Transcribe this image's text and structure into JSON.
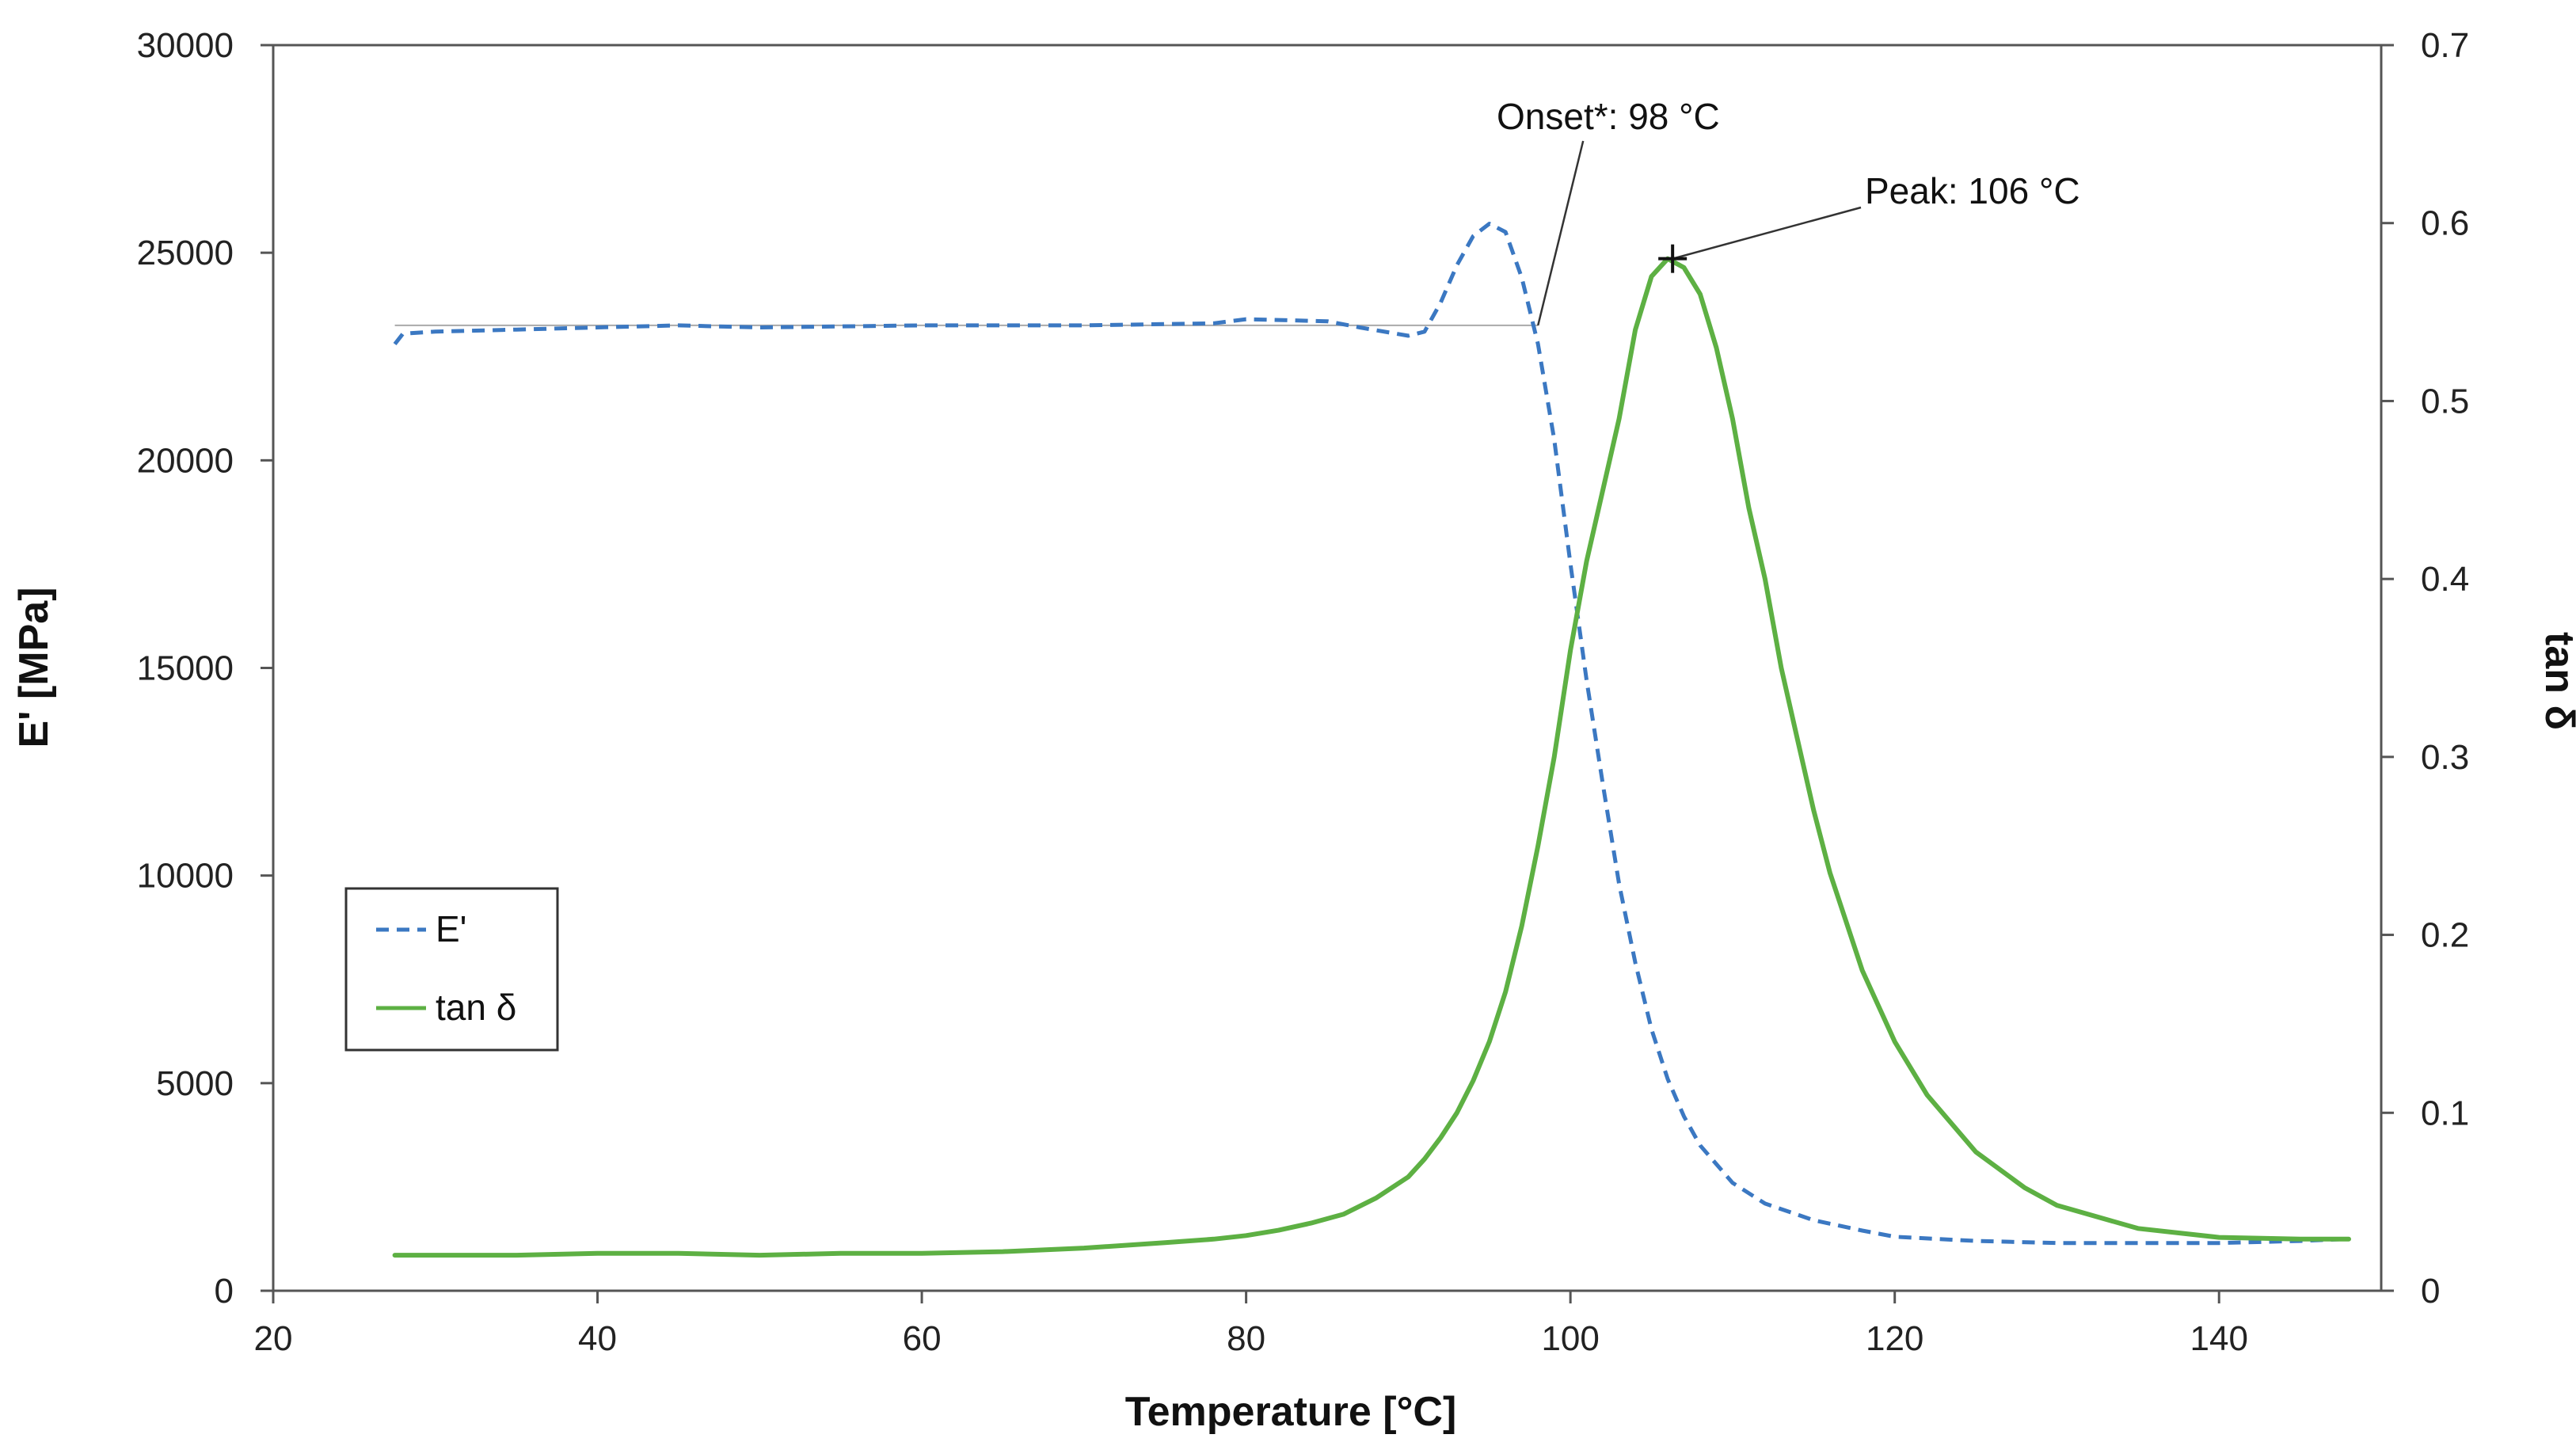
{
  "chart_data": {
    "type": "line",
    "title": "",
    "xlabel": "Temperature [°C]",
    "ylabel_left": "E' [MPa]",
    "ylabel_right": "tan δ",
    "xlim": [
      20,
      150
    ],
    "ylim_left": [
      0,
      30000
    ],
    "ylim_right": [
      0,
      0.7
    ],
    "xticks": [
      "20",
      "40",
      "60",
      "80",
      "100",
      "120",
      "140"
    ],
    "xtick_values": [
      20,
      40,
      60,
      80,
      100,
      120,
      140
    ],
    "yticks_left": [
      "0",
      "5000",
      "10000",
      "15000",
      "20000",
      "25000",
      "30000"
    ],
    "ytick_left_values": [
      0,
      5000,
      10000,
      15000,
      20000,
      25000,
      30000
    ],
    "yticks_right": [
      "0",
      "0.1",
      "0.2",
      "0.3",
      "0.4",
      "0.5",
      "0.6",
      "0.7"
    ],
    "ytick_right_values": [
      0,
      0.1,
      0.2,
      0.3,
      0.4,
      0.5,
      0.6,
      0.7
    ],
    "grid": false,
    "legend": {
      "position": "left-center",
      "entries": [
        "E'",
        "tan δ"
      ]
    },
    "series": [
      {
        "name": "E'",
        "axis": "left",
        "style": "dashed",
        "color": "#3b78c2",
        "x": [
          27.5,
          28,
          30,
          35,
          40,
          45,
          50,
          60,
          70,
          78,
          80,
          85,
          87,
          90,
          91,
          92,
          93,
          94,
          95,
          96,
          97,
          98,
          99,
          100,
          101,
          102,
          103,
          104,
          105,
          106,
          107,
          108,
          110,
          112,
          115,
          118,
          120,
          125,
          130,
          135,
          140,
          145,
          148
        ],
        "y": [
          22800,
          23050,
          23100,
          23150,
          23200,
          23250,
          23200,
          23250,
          23250,
          23300,
          23400,
          23350,
          23200,
          23000,
          23100,
          23800,
          24700,
          25400,
          25700,
          25500,
          24400,
          22800,
          20500,
          17500,
          14700,
          12200,
          9800,
          7900,
          6300,
          5100,
          4200,
          3500,
          2600,
          2100,
          1700,
          1450,
          1300,
          1200,
          1150,
          1150,
          1150,
          1200,
          1250
        ]
      },
      {
        "name": "tan δ",
        "axis": "right",
        "style": "solid",
        "color": "#5db043",
        "x": [
          27.5,
          30,
          35,
          40,
          45,
          50,
          55,
          60,
          65,
          70,
          75,
          78,
          80,
          82,
          84,
          86,
          88,
          90,
          91,
          92,
          93,
          94,
          95,
          96,
          97,
          98,
          99,
          100,
          101,
          102,
          103,
          104,
          105,
          106,
          107,
          108,
          109,
          110,
          111,
          112,
          113,
          114,
          115,
          116,
          118,
          120,
          122,
          125,
          128,
          130,
          135,
          140,
          145,
          148
        ],
        "y": [
          0.02,
          0.02,
          0.02,
          0.021,
          0.021,
          0.02,
          0.021,
          0.021,
          0.022,
          0.024,
          0.027,
          0.029,
          0.031,
          0.034,
          0.038,
          0.043,
          0.052,
          0.064,
          0.074,
          0.086,
          0.1,
          0.118,
          0.14,
          0.168,
          0.205,
          0.25,
          0.3,
          0.36,
          0.41,
          0.45,
          0.49,
          0.54,
          0.57,
          0.58,
          0.575,
          0.56,
          0.53,
          0.49,
          0.44,
          0.4,
          0.35,
          0.31,
          0.27,
          0.235,
          0.18,
          0.14,
          0.11,
          0.078,
          0.058,
          0.048,
          0.035,
          0.03,
          0.029,
          0.029
        ]
      }
    ],
    "annotations": [
      {
        "text": "Onset*: 98 °C",
        "x": 98,
        "y_left": 23250
      },
      {
        "text": "Peak: 106 °C",
        "x": 106.3,
        "y_right": 0.58
      }
    ],
    "onset_baseline": {
      "x_start": 27.5,
      "x_end": 98,
      "y_left": 23250
    }
  }
}
